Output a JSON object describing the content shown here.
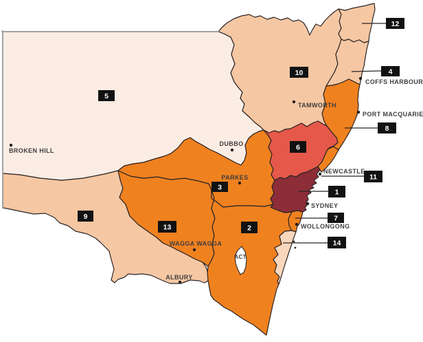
{
  "map": {
    "subject": "New South Wales numbered regions map",
    "colors": {
      "background": "#ffffff",
      "border": "#2a2526",
      "state_line": "#97999b",
      "badge_bg": "#121212",
      "badge_text": "#ffffff",
      "label_text": "#3e3e40",
      "dot": "#231f20",
      "palette": {
        "pale": "#fcede4",
        "salmon": "#f6c7a3",
        "peach": "#f9d7bd",
        "orange": "#f0811f",
        "red": "#e5584a",
        "maroon": "#8c2d38",
        "territory": "#ffffff"
      }
    },
    "regions": [
      {
        "number": "1",
        "color": "maroon"
      },
      {
        "number": "2",
        "color": "orange"
      },
      {
        "number": "3",
        "color": "orange"
      },
      {
        "number": "4",
        "color": "salmon"
      },
      {
        "number": "5",
        "color": "pale"
      },
      {
        "number": "6",
        "color": "red"
      },
      {
        "number": "7",
        "color": "orange"
      },
      {
        "number": "8",
        "color": "orange"
      },
      {
        "number": "9",
        "color": "salmon"
      },
      {
        "number": "10",
        "color": "salmon"
      },
      {
        "number": "11",
        "color": "orange"
      },
      {
        "number": "12",
        "color": "salmon"
      },
      {
        "number": "13",
        "color": "orange"
      },
      {
        "number": "14",
        "color": "peach"
      }
    ],
    "cities": [
      {
        "name": "BROKEN HILL"
      },
      {
        "name": "DUBBO"
      },
      {
        "name": "PARKES"
      },
      {
        "name": "TAMWORTH"
      },
      {
        "name": "COFFS HARBOUR"
      },
      {
        "name": "PORT MACQUARIE"
      },
      {
        "name": "NEWCASTLE"
      },
      {
        "name": "SYDNEY"
      },
      {
        "name": "WOLLONGONG"
      },
      {
        "name": "WAGGA WAGGA"
      },
      {
        "name": "ALBURY"
      }
    ],
    "territory": {
      "label": "ACT"
    }
  }
}
